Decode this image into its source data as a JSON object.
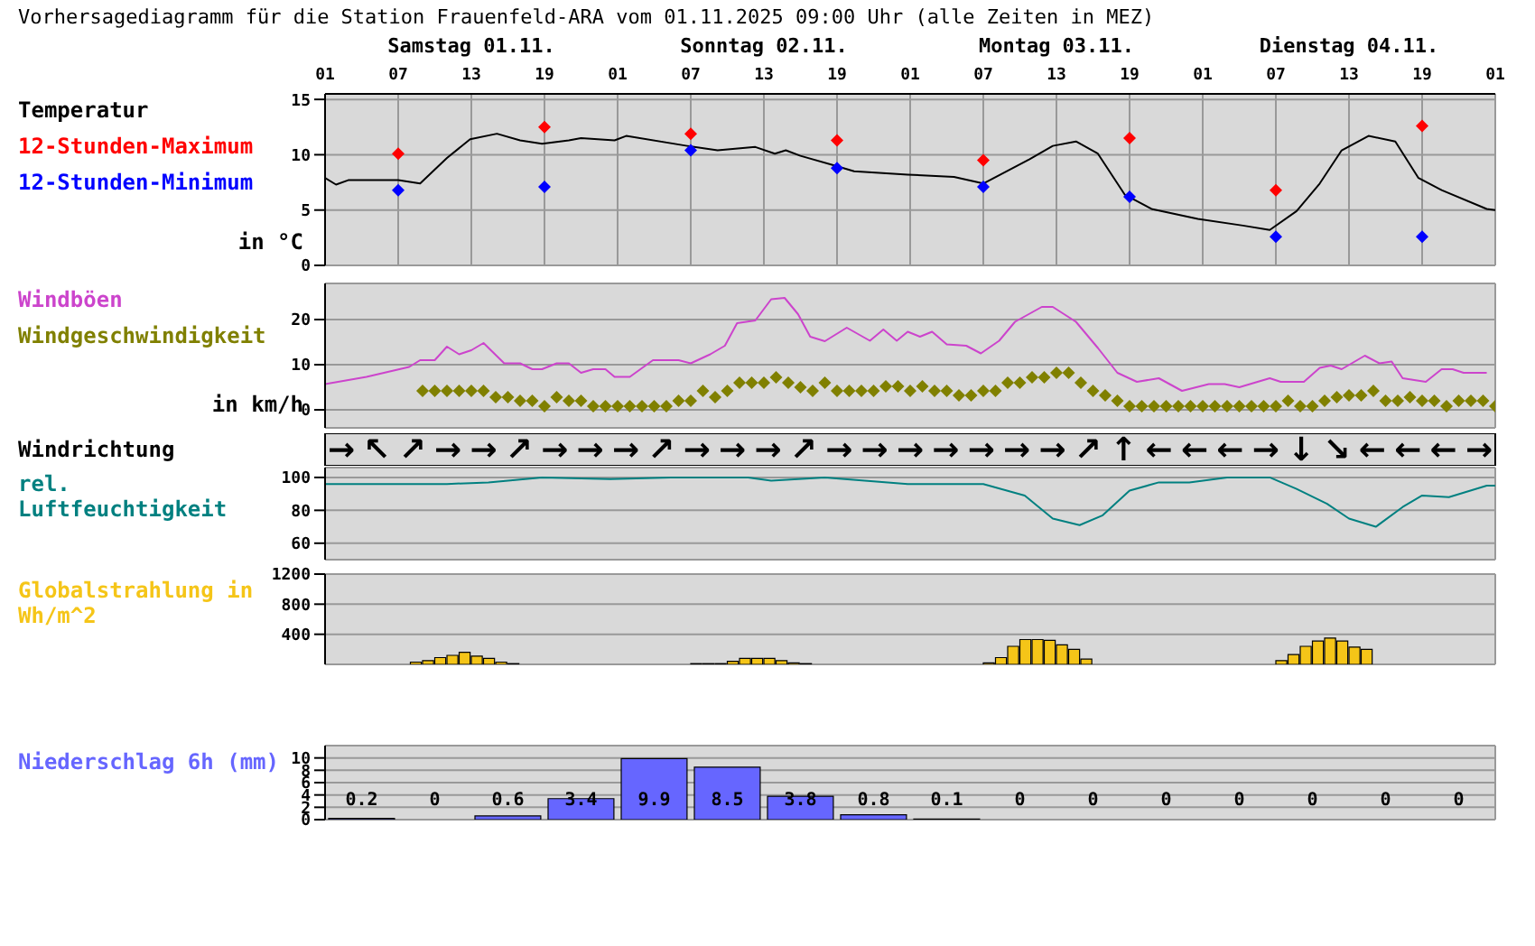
{
  "chart_data": [
    {
      "type": "line",
      "title": "Vorhersagediagramm für die Station Frauenfeld-ARA vom 01.11.2025 09:00 Uhr (alle Zeiten in MEZ)",
      "legend_title": "Temperatur",
      "ylabel": "in °C",
      "legend": "left",
      "grid": true,
      "xlim": [
        "2025-11-01T01:00",
        "2025-11-05T01:00"
      ],
      "xticks": [
        {
          "value": "2025-11-01T01:00",
          "label": "01"
        },
        {
          "value": "2025-11-01T07:00",
          "label": "07"
        },
        {
          "value": "2025-11-01T13:00",
          "label": "13"
        },
        {
          "value": "2025-11-01T19:00",
          "label": "19"
        },
        {
          "value": "2025-11-02T01:00",
          "label": "01"
        },
        {
          "value": "2025-11-02T07:00",
          "label": "07"
        },
        {
          "value": "2025-11-02T13:00",
          "label": "13"
        },
        {
          "value": "2025-11-02T19:00",
          "label": "19"
        },
        {
          "value": "2025-11-03T01:00",
          "label": "01"
        },
        {
          "value": "2025-11-03T07:00",
          "label": "07"
        },
        {
          "value": "2025-11-03T13:00",
          "label": "13"
        },
        {
          "value": "2025-11-03T19:00",
          "label": "19"
        },
        {
          "value": "2025-11-04T01:00",
          "label": "01"
        },
        {
          "value": "2025-11-04T07:00",
          "label": "07"
        },
        {
          "value": "2025-11-04T13:00",
          "label": "13"
        },
        {
          "value": "2025-11-04T19:00",
          "label": "19"
        },
        {
          "value": "2025-11-05T01:00",
          "label": "01"
        }
      ],
      "x2lim": [
        "2025-11-01T01:00",
        "2025-11-05T01:00"
      ],
      "x2ticks": [
        {
          "value": "2025-11-01T13:00",
          "label": "Samstag 01.11."
        },
        {
          "value": "2025-11-02T13:00",
          "label": "Sonntag 02.11."
        },
        {
          "value": "2025-11-03T13:00",
          "label": "Montag 03.11."
        },
        {
          "value": "2025-11-04T13:00",
          "label": "Dienstag 04.11."
        }
      ],
      "ylim": [
        0,
        15.5
      ],
      "yticks": [
        0,
        5,
        10,
        15
      ],
      "series": [
        {
          "type": "line",
          "color": "#000000",
          "x": [
            "2025-11-01T01:00",
            "2025-11-01T01:54",
            "2025-11-01T02:54",
            "2025-11-01T07:00",
            "2025-11-01T08:48",
            "2025-11-01T11:00",
            "2025-11-01T12:54",
            "2025-11-01T15:06",
            "2025-11-01T17:00",
            "2025-11-01T18:48",
            "2025-11-01T21:00",
            "2025-11-01T22:00",
            "2025-11-02T00:45",
            "2025-11-02T01:42",
            "2025-11-02T06:42",
            "2025-11-02T09:12",
            "2025-11-02T12:18",
            "2025-11-02T13:54",
            "2025-11-02T14:48",
            "2025-11-02T16:00",
            "2025-11-02T18:54",
            "2025-11-02T20:24",
            "2025-11-03T00:48",
            "2025-11-03T04:36",
            "2025-11-03T07:00",
            "2025-11-03T10:48",
            "2025-11-03T12:42",
            "2025-11-03T14:36",
            "2025-11-03T16:24",
            "2025-11-03T18:36",
            "2025-11-03T20:48",
            "2025-11-04T00:36",
            "2025-11-04T04:18",
            "2025-11-04T06:30",
            "2025-11-04T08:42",
            "2025-11-04T10:36",
            "2025-11-04T12:24",
            "2025-11-04T14:36",
            "2025-11-04T16:48",
            "2025-11-04T18:42",
            "2025-11-04T20:36",
            "2025-11-05T00:18",
            "2025-11-05T01:00"
          ],
          "values": [
            7.9,
            7.3,
            7.7,
            7.7,
            7.4,
            9.7,
            11.4,
            11.9,
            11.3,
            11.0,
            11.3,
            11.5,
            11.3,
            11.7,
            10.8,
            10.4,
            10.7,
            10.1,
            10.4,
            9.9,
            9.0,
            8.5,
            8.2,
            8.0,
            7.4,
            9.6,
            10.8,
            11.2,
            10.1,
            6.4,
            5.1,
            4.2,
            3.6,
            3.2,
            4.9,
            7.4,
            10.4,
            11.7,
            11.2,
            7.9,
            6.8,
            5.1,
            5.0
          ]
        },
        {
          "type": "scatter",
          "marker": "diamond",
          "name": "12-Stunden-Maximum",
          "color": "#ff0000",
          "x": [
            "2025-11-01T07:00",
            "2025-11-01T19:00",
            "2025-11-02T07:00",
            "2025-11-02T19:00",
            "2025-11-03T07:00",
            "2025-11-03T19:00",
            "2025-11-04T07:00",
            "2025-11-04T19:00"
          ],
          "values": [
            10.1,
            12.5,
            11.9,
            11.3,
            9.5,
            11.5,
            6.8,
            12.6
          ]
        },
        {
          "type": "scatter",
          "marker": "diamond",
          "name": "12-Stunden-Minimum",
          "color": "#0000ff",
          "x": [
            "2025-11-01T07:00",
            "2025-11-01T19:00",
            "2025-11-02T07:00",
            "2025-11-02T19:00",
            "2025-11-03T07:00",
            "2025-11-03T19:00",
            "2025-11-04T07:00",
            "2025-11-04T19:00"
          ],
          "values": [
            6.8,
            7.1,
            10.4,
            8.8,
            7.1,
            6.2,
            2.6,
            2.6
          ]
        }
      ]
    },
    {
      "type": "line",
      "ylabel": "in km/h",
      "legend": "left",
      "grid": true,
      "tick_labels": "y",
      "xlim": [
        "2025-11-01T01:00",
        "2025-11-05T01:00"
      ],
      "xticks": [
        "2025-11-01T01:00",
        "2025-11-01T07:00",
        "2025-11-01T13:00",
        "2025-11-01T19:00",
        "2025-11-02T01:00",
        "2025-11-02T07:00",
        "2025-11-02T13:00",
        "2025-11-02T19:00",
        "2025-11-03T01:00",
        "2025-11-03T07:00",
        "2025-11-03T13:00",
        "2025-11-03T19:00",
        "2025-11-04T01:00",
        "2025-11-04T07:00",
        "2025-11-04T13:00",
        "2025-11-04T19:00",
        "2025-11-05T01:00"
      ],
      "ylim": [
        -4,
        28
      ],
      "yticks": [
        0,
        10,
        20
      ],
      "series": [
        {
          "type": "line",
          "name": "Windböen",
          "color": "#cc44cc",
          "x": [
            "2025-11-01T01:00",
            "2025-11-01T04:24",
            "2025-11-01T07:54",
            "2025-11-01T08:48",
            "2025-11-01T10:00",
            "2025-11-01T11:00",
            "2025-11-01T12:00",
            "2025-11-01T13:00",
            "2025-11-01T14:00",
            "2025-11-01T15:42",
            "2025-11-01T17:00",
            "2025-11-01T18:00",
            "2025-11-01T18:48",
            "2025-11-01T20:00",
            "2025-11-01T21:00",
            "2025-11-01T22:00",
            "2025-11-01T23:00",
            "2025-11-02T00:00",
            "2025-11-02T00:45",
            "2025-11-02T02:00",
            "2025-11-02T03:54",
            "2025-11-02T06:00",
            "2025-11-02T07:00",
            "2025-11-02T08:36",
            "2025-11-02T09:48",
            "2025-11-02T10:48",
            "2025-11-02T12:18",
            "2025-11-02T13:36",
            "2025-11-02T14:42",
            "2025-11-02T15:48",
            "2025-11-02T16:48",
            "2025-11-02T18:00",
            "2025-11-02T19:48",
            "2025-11-02T21:42",
            "2025-11-02T22:48",
            "2025-11-02T23:54",
            "2025-11-03T00:48",
            "2025-11-03T01:48",
            "2025-11-03T02:48",
            "2025-11-03T04:00",
            "2025-11-03T05:36",
            "2025-11-03T06:48",
            "2025-11-03T08:18",
            "2025-11-03T09:36",
            "2025-11-03T11:48",
            "2025-11-03T12:42",
            "2025-11-03T14:36",
            "2025-11-03T16:24",
            "2025-11-03T18:00",
            "2025-11-03T19:36",
            "2025-11-03T21:24",
            "2025-11-03T23:18",
            "2025-11-04T01:30",
            "2025-11-04T02:48",
            "2025-11-04T04:00",
            "2025-11-04T06:30",
            "2025-11-04T07:24",
            "2025-11-04T09:18",
            "2025-11-04T10:36",
            "2025-11-04T11:30",
            "2025-11-04T12:24",
            "2025-11-04T14:18",
            "2025-11-04T15:30",
            "2025-11-04T16:30",
            "2025-11-04T17:24",
            "2025-11-04T19:18",
            "2025-11-04T20:36",
            "2025-11-04T21:30",
            "2025-11-04T22:24",
            "2025-11-05T00:18"
          ],
          "values": [
            5.7,
            7.3,
            9.5,
            11,
            11,
            14,
            12.3,
            13.2,
            14.8,
            10.3,
            10.3,
            9,
            9,
            10.3,
            10.3,
            8.2,
            9,
            9,
            7.3,
            7.3,
            11,
            11,
            10.3,
            12.3,
            14.2,
            19.2,
            19.8,
            24.5,
            24.8,
            21.2,
            16.2,
            15.2,
            18.2,
            15.3,
            17.8,
            15.3,
            17.3,
            16.2,
            17.3,
            14.5,
            14.2,
            12.5,
            15.3,
            19.5,
            22.8,
            22.8,
            19.5,
            13.7,
            8.2,
            6.2,
            7,
            4.2,
            5.7,
            5.7,
            5,
            7,
            6.2,
            6.2,
            9.3,
            9.8,
            9,
            12,
            10.3,
            10.7,
            7,
            6.2,
            9,
            9,
            8.2,
            8.2
          ]
        },
        {
          "type": "scatter",
          "marker": "diamond",
          "name": "Windgeschwindigkeit",
          "color": "#808000",
          "x": [
            "2025-11-01T09:00",
            "2025-11-01T10:00",
            "2025-11-01T11:00",
            "2025-11-01T12:00",
            "2025-11-01T13:00",
            "2025-11-01T14:00",
            "2025-11-01T15:00",
            "2025-11-01T16:00",
            "2025-11-01T17:00",
            "2025-11-01T18:00",
            "2025-11-01T19:00",
            "2025-11-01T20:00",
            "2025-11-01T21:00",
            "2025-11-01T22:00",
            "2025-11-01T23:00",
            "2025-11-02T00:00",
            "2025-11-02T01:00",
            "2025-11-02T02:00",
            "2025-11-02T03:00",
            "2025-11-02T04:00",
            "2025-11-02T05:00",
            "2025-11-02T06:00",
            "2025-11-02T07:00",
            "2025-11-02T08:00",
            "2025-11-02T09:00",
            "2025-11-02T10:00",
            "2025-11-02T11:00",
            "2025-11-02T12:00",
            "2025-11-02T13:00",
            "2025-11-02T14:00",
            "2025-11-02T15:00",
            "2025-11-02T16:00",
            "2025-11-02T17:00",
            "2025-11-02T18:00",
            "2025-11-02T19:00",
            "2025-11-02T20:00",
            "2025-11-02T21:00",
            "2025-11-02T22:00",
            "2025-11-02T23:00",
            "2025-11-03T00:00",
            "2025-11-03T01:00",
            "2025-11-03T02:00",
            "2025-11-03T03:00",
            "2025-11-03T04:00",
            "2025-11-03T05:00",
            "2025-11-03T06:00",
            "2025-11-03T07:00",
            "2025-11-03T08:00",
            "2025-11-03T09:00",
            "2025-11-03T10:00",
            "2025-11-03T11:00",
            "2025-11-03T12:00",
            "2025-11-03T13:00",
            "2025-11-03T14:00",
            "2025-11-03T15:00",
            "2025-11-03T16:00",
            "2025-11-03T17:00",
            "2025-11-03T18:00",
            "2025-11-03T19:00",
            "2025-11-03T20:00",
            "2025-11-03T21:00",
            "2025-11-03T22:00",
            "2025-11-03T23:00",
            "2025-11-04T00:00",
            "2025-11-04T01:00",
            "2025-11-04T02:00",
            "2025-11-04T03:00",
            "2025-11-04T04:00",
            "2025-11-04T05:00",
            "2025-11-04T06:00",
            "2025-11-04T07:00",
            "2025-11-04T08:00",
            "2025-11-04T09:00",
            "2025-11-04T10:00",
            "2025-11-04T11:00",
            "2025-11-04T12:00",
            "2025-11-04T13:00",
            "2025-11-04T14:00",
            "2025-11-04T15:00",
            "2025-11-04T16:00",
            "2025-11-04T17:00",
            "2025-11-04T18:00",
            "2025-11-04T19:00",
            "2025-11-04T20:00",
            "2025-11-04T21:00",
            "2025-11-04T22:00",
            "2025-11-04T23:00",
            "2025-11-05T00:00",
            "2025-11-05T01:00"
          ],
          "values": [
            4.2,
            4.2,
            4.2,
            4.2,
            4.2,
            4.2,
            2.8,
            2.8,
            2,
            2,
            0.8,
            2.8,
            2,
            2,
            0.8,
            0.8,
            0.8,
            0.8,
            0.8,
            0.8,
            0.8,
            2,
            2,
            4.2,
            2.8,
            4.2,
            6,
            6,
            6,
            7.2,
            6,
            5,
            4.2,
            6,
            4.2,
            4.2,
            4.2,
            4.2,
            5.2,
            5.2,
            4.2,
            5.2,
            4.2,
            4.2,
            3.2,
            3.2,
            4.2,
            4.2,
            6,
            6,
            7.2,
            7.2,
            8.2,
            8.2,
            6,
            4.2,
            3.2,
            2,
            0.8,
            0.8,
            0.8,
            0.8,
            0.8,
            0.8,
            0.8,
            0.8,
            0.8,
            0.8,
            0.8,
            0.8,
            0.8,
            2,
            0.8,
            0.8,
            2,
            2.8,
            3.2,
            3.2,
            4.2,
            2,
            2,
            2.8,
            2,
            2,
            0.8,
            2,
            2,
            2,
            0.8
          ]
        }
      ]
    },
    {
      "type": "other",
      "title": "Windrichtung",
      "annotations": [
        "→",
        "↖",
        "↗",
        "→",
        "→",
        "↗",
        "→",
        "→",
        "→",
        "↗",
        "→",
        "→",
        "→",
        "↗",
        "→",
        "→",
        "→",
        "→",
        "→",
        "→",
        "→",
        "↗",
        "↑",
        "←",
        "←",
        "←",
        "→",
        "↓",
        "↘",
        "←",
        "←",
        "←",
        "→"
      ]
    },
    {
      "type": "line",
      "legend": "left",
      "grid": true,
      "tick_labels": "y",
      "xlim": [
        "2025-11-01T01:00",
        "2025-11-05T01:00"
      ],
      "xticks": [
        "2025-11-01T01:00",
        "2025-11-01T07:00",
        "2025-11-01T13:00",
        "2025-11-01T19:00",
        "2025-11-02T01:00",
        "2025-11-02T07:00",
        "2025-11-02T13:00",
        "2025-11-02T19:00",
        "2025-11-03T01:00",
        "2025-11-03T07:00",
        "2025-11-03T13:00",
        "2025-11-03T19:00",
        "2025-11-04T01:00",
        "2025-11-04T07:00",
        "2025-11-04T13:00",
        "2025-11-04T19:00",
        "2025-11-05T01:00"
      ],
      "ylim": [
        50,
        106
      ],
      "yticks": [
        60,
        80,
        100
      ],
      "series": [
        {
          "name": "rel. Luftfeuchtigkeit",
          "color": "#008080",
          "x": [
            "2025-11-01T01:00",
            "2025-11-01T09:24",
            "2025-11-01T11:00",
            "2025-11-01T14:24",
            "2025-11-01T18:48",
            "2025-11-02T00:24",
            "2025-11-02T05:24",
            "2025-11-02T11:42",
            "2025-11-02T13:36",
            "2025-11-02T18:00",
            "2025-11-03T00:48",
            "2025-11-03T04:36",
            "2025-11-03T07:00",
            "2025-11-03T10:24",
            "2025-11-03T12:42",
            "2025-11-03T14:54",
            "2025-11-03T16:48",
            "2025-11-03T19:00",
            "2025-11-03T21:24",
            "2025-11-03T23:54",
            "2025-11-04T03:00",
            "2025-11-04T06:30",
            "2025-11-04T08:42",
            "2025-11-04T11:12",
            "2025-11-04T13:00",
            "2025-11-04T15:12",
            "2025-11-04T17:24",
            "2025-11-04T19:00",
            "2025-11-04T21:12",
            "2025-11-05T00:18",
            "2025-11-05T01:00"
          ],
          "values": [
            96,
            96,
            96,
            97,
            100,
            99,
            100,
            100,
            98,
            100,
            96,
            96,
            96,
            89,
            75,
            71,
            77,
            92,
            97,
            97,
            100,
            100,
            93,
            84,
            75,
            70,
            82,
            89,
            88,
            95,
            95
          ]
        }
      ]
    },
    {
      "type": "bar",
      "legend": "left",
      "grid": true,
      "tick_labels": "y",
      "xlim": [
        "2025-11-01T01:00",
        "2025-11-05T01:00"
      ],
      "xticks": [
        "2025-11-01T01:00",
        "2025-11-01T07:00",
        "2025-11-01T13:00",
        "2025-11-01T19:00",
        "2025-11-02T01:00",
        "2025-11-02T07:00",
        "2025-11-02T13:00",
        "2025-11-02T19:00",
        "2025-11-03T01:00",
        "2025-11-03T07:00",
        "2025-11-03T13:00",
        "2025-11-03T19:00",
        "2025-11-04T01:00",
        "2025-11-04T07:00",
        "2025-11-04T13:00",
        "2025-11-04T19:00",
        "2025-11-05T01:00"
      ],
      "ylim": [
        0,
        1200
      ],
      "yticks": [
        400,
        800,
        1200
      ],
      "series": [
        {
          "name": "Globalstrahlung in Wh/m^2",
          "color": "#f5c518",
          "x": [
            "2025-11-01T08:30",
            "2025-11-01T09:30",
            "2025-11-01T10:30",
            "2025-11-01T11:30",
            "2025-11-01T12:30",
            "2025-11-01T13:30",
            "2025-11-01T14:30",
            "2025-11-01T15:30",
            "2025-11-01T16:30",
            "2025-11-02T07:30",
            "2025-11-02T08:30",
            "2025-11-02T09:30",
            "2025-11-02T10:30",
            "2025-11-02T11:30",
            "2025-11-02T12:30",
            "2025-11-02T13:30",
            "2025-11-02T14:30",
            "2025-11-02T15:30",
            "2025-11-02T16:30",
            "2025-11-03T07:30",
            "2025-11-03T08:30",
            "2025-11-03T09:30",
            "2025-11-03T10:30",
            "2025-11-03T11:30",
            "2025-11-03T12:30",
            "2025-11-03T13:30",
            "2025-11-03T14:30",
            "2025-11-03T15:30",
            "2025-11-04T07:30",
            "2025-11-04T08:30",
            "2025-11-04T09:30",
            "2025-11-04T10:30",
            "2025-11-04T11:30",
            "2025-11-04T12:30",
            "2025-11-04T13:30",
            "2025-11-04T14:30"
          ],
          "values": [
            30,
            50,
            90,
            120,
            160,
            110,
            80,
            30,
            10,
            10,
            10,
            10,
            40,
            80,
            80,
            80,
            50,
            20,
            10,
            20,
            90,
            240,
            330,
            330,
            320,
            260,
            200,
            70,
            50,
            130,
            240,
            310,
            350,
            310,
            230,
            200
          ]
        }
      ]
    },
    {
      "type": "bar",
      "legend": "left",
      "grid": true,
      "tick_labels": "y",
      "data_labels": true,
      "xlim": [
        "2025-11-01T01:00",
        "2025-11-05T01:00"
      ],
      "xticks": [
        "2025-11-01T01:00",
        "2025-11-01T07:00",
        "2025-11-01T13:00",
        "2025-11-01T19:00",
        "2025-11-02T01:00",
        "2025-11-02T07:00",
        "2025-11-02T13:00",
        "2025-11-02T19:00",
        "2025-11-03T01:00",
        "2025-11-03T07:00",
        "2025-11-03T13:00",
        "2025-11-03T19:00",
        "2025-11-04T01:00",
        "2025-11-04T07:00",
        "2025-11-04T13:00",
        "2025-11-04T19:00",
        "2025-11-05T01:00"
      ],
      "ylim": [
        0,
        12
      ],
      "yticks": [
        0,
        2,
        4,
        6,
        8,
        10
      ],
      "series": [
        {
          "name": "Niederschlag 6h (mm)",
          "color": "#6666ff",
          "x": [
            "2025-11-01T04:00",
            "2025-11-01T10:00",
            "2025-11-01T16:00",
            "2025-11-01T22:00",
            "2025-11-02T04:00",
            "2025-11-02T10:00",
            "2025-11-02T16:00",
            "2025-11-02T22:00",
            "2025-11-03T04:00",
            "2025-11-03T10:00",
            "2025-11-03T16:00",
            "2025-11-03T22:00",
            "2025-11-04T04:00",
            "2025-11-04T10:00",
            "2025-11-04T16:00",
            "2025-11-04T22:00"
          ],
          "values": [
            0.2,
            0,
            0.6,
            3.4,
            9.9,
            8.5,
            3.8,
            0.8,
            0.1,
            0,
            0,
            0,
            0,
            0,
            0,
            0
          ]
        }
      ]
    }
  ]
}
